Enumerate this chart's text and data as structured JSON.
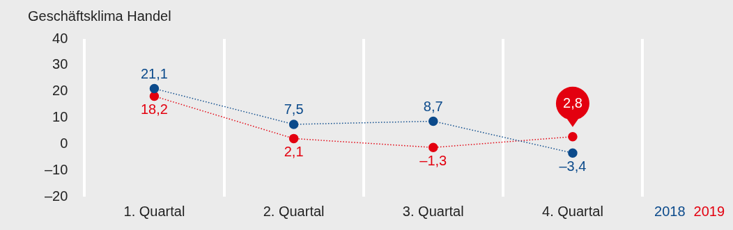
{
  "chart_data": {
    "type": "line",
    "title": "Geschäftsklima Handel",
    "categories": [
      "1. Quartal",
      "2. Quartal",
      "3. Quartal",
      "4. Quartal"
    ],
    "series": [
      {
        "name": "2018",
        "color": "#0b4a8b",
        "values": [
          21.1,
          7.5,
          8.7,
          -3.4
        ],
        "value_labels": [
          "21,1",
          "7,5",
          "8,7",
          "–3,4"
        ]
      },
      {
        "name": "2019",
        "color": "#e3000f",
        "values": [
          18.2,
          2.1,
          -1.3,
          2.8
        ],
        "value_labels": [
          "18,2",
          "2,1",
          "–1,3",
          "2,8"
        ]
      }
    ],
    "ylim": [
      -20,
      40
    ],
    "yticks": [
      {
        "value": -20,
        "label": "–20"
      },
      {
        "value": -10,
        "label": "–10"
      },
      0,
      10,
      20,
      30,
      40
    ],
    "grid": "x",
    "legend": "bottom right",
    "marker": "circle",
    "line_style": "dotted"
  }
}
